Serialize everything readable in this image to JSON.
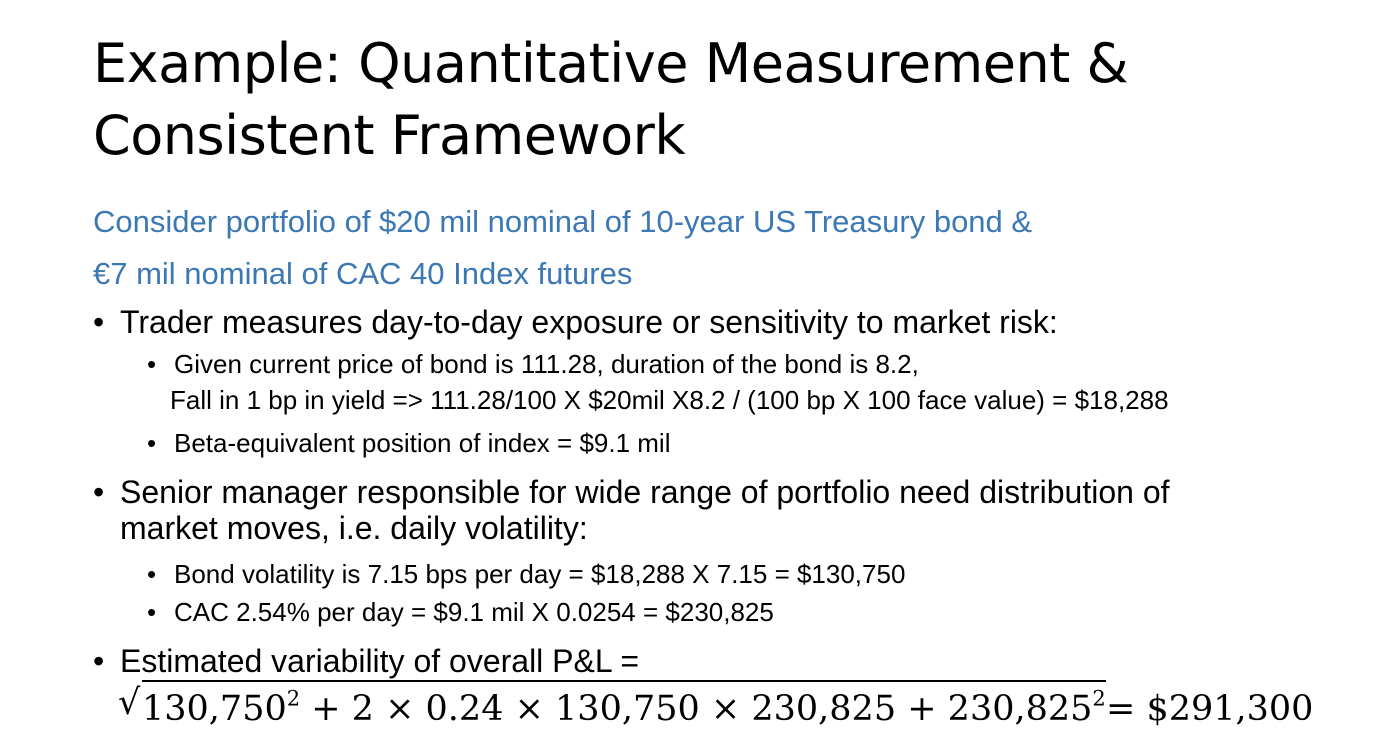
{
  "slide": {
    "title_line1": "Example: Quantitative Measurement &",
    "title_line2": "Consistent Framework",
    "subtitle_line1": "Consider portfolio of $20 mil nominal of 10-year US Treasury bond &",
    "subtitle_line2": "€7 mil nominal of CAC 40 Index futures",
    "colors": {
      "subtitle": "#3c78b4",
      "text": "#000000"
    },
    "bullet_symbol": "•",
    "bullets": [
      {
        "text": "Trader measures day-to-day exposure or sensitivity to market risk:",
        "sub": [
          {
            "line1": "Given current price of bond is 111.28, duration of the bond is 8.2,",
            "line2": "Fall in 1 bp in yield => 111.28/100 X $20mil X8.2 / (100 bp X 100 face value) = $18,288"
          },
          {
            "line1": "Beta-equivalent position of index = $9.1 mil"
          }
        ]
      },
      {
        "text_line1": "Senior manager responsible for wide range of portfolio need distribution of",
        "text_line2": "market moves, i.e. daily volatility:",
        "sub": [
          {
            "line1": "Bond volatility is 7.15 bps per day = $18,288 X 7.15 = $130,750"
          },
          {
            "line1": "CAC 2.54% per day = $9.1 mil X 0.0254 = $230,825"
          }
        ]
      },
      {
        "text": "Estimated variability of overall P&L ="
      }
    ],
    "formula": {
      "radical": "√",
      "term1": "130,750",
      "exp1": "2",
      "mid": " + 2 × 0.24 × 130,750 × 230,825 + ",
      "term2": "230,825",
      "exp2": "2",
      "result": " = $291,300"
    }
  }
}
